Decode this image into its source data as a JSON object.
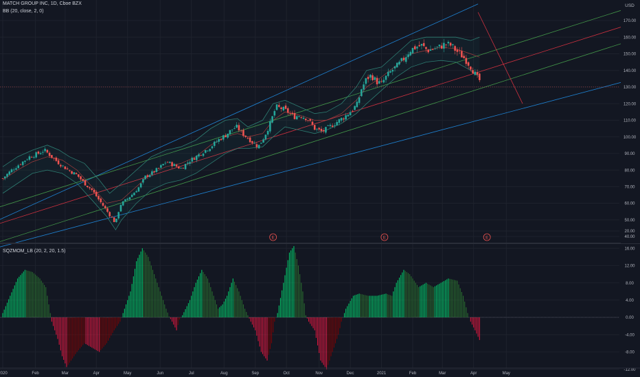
{
  "header": {
    "symbol_line": "MATCH GROUP INC, 1D, Cboe BZX",
    "bb_label": "BB (20, close, 2, 0)",
    "osc_label": "SQZMOM_LB (20, 2, 20, 1.5)"
  },
  "price_axis": {
    "currency": "USD",
    "ticks": [
      "170.00",
      "160.00",
      "150.00",
      "140.00",
      "130.00",
      "120.00",
      "110.00",
      "100.00",
      "90.00",
      "80.00",
      "70.00",
      "60.00",
      "50.00",
      "40.00"
    ],
    "last_price": 130
  },
  "osc_axis": {
    "ticks": [
      "20.00",
      "16.00",
      "12.00",
      "8.00",
      "4.00",
      "0.00",
      "-4.00",
      "-8.00",
      "-12.00"
    ]
  },
  "time_axis": [
    "2020",
    "Feb",
    "Mar",
    "Apr",
    "May",
    "Jun",
    "Jul",
    "Aug",
    "Sep",
    "Oct",
    "Nov",
    "Dec",
    "2021",
    "Feb",
    "Mar",
    "Apr",
    "May"
  ],
  "event_markers": [
    "E",
    "E",
    "E"
  ],
  "colors": {
    "background": "#131722",
    "up": "#26a69a",
    "down": "#ef5350",
    "grid": "#1e222d",
    "bb_band": "#2e7d72",
    "bb_fill": "rgba(38,166,154,0.06)",
    "bb_mid": "#a23c3c",
    "chan_blue": "#2196f3",
    "chan_green": "#4caf50",
    "chan_red": "#f23645",
    "hist_green_strong": "#00e676",
    "hist_green_weak": "#2e7d32",
    "hist_red_strong": "#ff1744",
    "hist_red_weak": "#8b0000",
    "zero_gray": "#787b86",
    "text": "#b2b5be",
    "last_price_bg": "#ef5350"
  },
  "chart_data": [
    {
      "type": "candlestick",
      "title": "MATCH GROUP INC, 1D, Cboe BZX",
      "ylabel": "USD",
      "ylim": [
        40,
        175
      ],
      "x_ticks": [
        "2020",
        "Feb",
        "Mar",
        "Apr",
        "May",
        "Jun",
        "Jul",
        "Aug",
        "Sep",
        "Oct",
        "Nov",
        "Dec",
        "2021",
        "Feb",
        "Mar",
        "Apr",
        "May"
      ],
      "close_path": [
        [
          0,
          75
        ],
        [
          6,
          80
        ],
        [
          12,
          84
        ],
        [
          18,
          88
        ],
        [
          24,
          90
        ],
        [
          28,
          92
        ],
        [
          33,
          88
        ],
        [
          38,
          84
        ],
        [
          44,
          80
        ],
        [
          50,
          77
        ],
        [
          55,
          72
        ],
        [
          60,
          68
        ],
        [
          64,
          63
        ],
        [
          68,
          58
        ],
        [
          72,
          53
        ],
        [
          76,
          48
        ],
        [
          79,
          59
        ],
        [
          83,
          62
        ],
        [
          88,
          66
        ],
        [
          92,
          70
        ],
        [
          96,
          76
        ],
        [
          100,
          78
        ],
        [
          105,
          81
        ],
        [
          110,
          85
        ],
        [
          115,
          83
        ],
        [
          120,
          81
        ],
        [
          125,
          85
        ],
        [
          130,
          88
        ],
        [
          135,
          91
        ],
        [
          140,
          94
        ],
        [
          145,
          98
        ],
        [
          150,
          101
        ],
        [
          155,
          105
        ],
        [
          158,
          106
        ],
        [
          160,
          103
        ],
        [
          164,
          100
        ],
        [
          168,
          97
        ],
        [
          172,
          94
        ],
        [
          176,
          100
        ],
        [
          180,
          108
        ],
        [
          184,
          118
        ],
        [
          188,
          117
        ],
        [
          192,
          115
        ],
        [
          196,
          112
        ],
        [
          200,
          113
        ],
        [
          205,
          111
        ],
        [
          210,
          105
        ],
        [
          215,
          103
        ],
        [
          220,
          106
        ],
        [
          225,
          109
        ],
        [
          230,
          112
        ],
        [
          235,
          116
        ],
        [
          239,
          120
        ],
        [
          241,
          128
        ],
        [
          245,
          135
        ],
        [
          248,
          137
        ],
        [
          252,
          133
        ],
        [
          255,
          132
        ],
        [
          258,
          136
        ],
        [
          262,
          140
        ],
        [
          266,
          143
        ],
        [
          270,
          147
        ],
        [
          274,
          152
        ],
        [
          278,
          154
        ],
        [
          282,
          155
        ],
        [
          286,
          152
        ],
        [
          290,
          153
        ],
        [
          294,
          154
        ],
        [
          298,
          156
        ],
        [
          302,
          155
        ],
        [
          305,
          152
        ],
        [
          309,
          149
        ],
        [
          312,
          146
        ],
        [
          316,
          141
        ],
        [
          319,
          136
        ],
        [
          321,
          134
        ]
      ],
      "bollinger": {
        "upper": [
          [
            0,
            82
          ],
          [
            10,
            88
          ],
          [
            20,
            92
          ],
          [
            30,
            95
          ],
          [
            38,
            92
          ],
          [
            45,
            88
          ],
          [
            55,
            84
          ],
          [
            65,
            74
          ],
          [
            72,
            66
          ],
          [
            80,
            72
          ],
          [
            90,
            80
          ],
          [
            100,
            88
          ],
          [
            110,
            92
          ],
          [
            120,
            94
          ],
          [
            130,
            98
          ],
          [
            140,
            105
          ],
          [
            150,
            110
          ],
          [
            158,
            111
          ],
          [
            165,
            106
          ],
          [
            175,
            110
          ],
          [
            182,
            120
          ],
          [
            190,
            122
          ],
          [
            200,
            118
          ],
          [
            210,
            114
          ],
          [
            218,
            115
          ],
          [
            228,
            120
          ],
          [
            238,
            130
          ],
          [
            245,
            140
          ],
          [
            255,
            142
          ],
          [
            265,
            150
          ],
          [
            275,
            158
          ],
          [
            285,
            160
          ],
          [
            295,
            160
          ],
          [
            305,
            160
          ],
          [
            315,
            158
          ],
          [
            321,
            160
          ]
        ],
        "middle": [
          [
            0,
            74
          ],
          [
            10,
            80
          ],
          [
            20,
            85
          ],
          [
            30,
            88
          ],
          [
            40,
            86
          ],
          [
            50,
            80
          ],
          [
            60,
            70
          ],
          [
            70,
            60
          ],
          [
            80,
            62
          ],
          [
            90,
            70
          ],
          [
            100,
            78
          ],
          [
            110,
            82
          ],
          [
            120,
            84
          ],
          [
            130,
            88
          ],
          [
            140,
            95
          ],
          [
            150,
            100
          ],
          [
            158,
            102
          ],
          [
            165,
            100
          ],
          [
            175,
            102
          ],
          [
            182,
            110
          ],
          [
            190,
            115
          ],
          [
            200,
            113
          ],
          [
            210,
            110
          ],
          [
            218,
            110
          ],
          [
            228,
            114
          ],
          [
            238,
            122
          ],
          [
            245,
            130
          ],
          [
            255,
            136
          ],
          [
            265,
            143
          ],
          [
            275,
            150
          ],
          [
            285,
            152
          ],
          [
            295,
            154
          ],
          [
            305,
            153
          ],
          [
            315,
            150
          ],
          [
            321,
            148
          ]
        ],
        "lower": [
          [
            0,
            66
          ],
          [
            10,
            72
          ],
          [
            20,
            78
          ],
          [
            30,
            80
          ],
          [
            40,
            78
          ],
          [
            50,
            72
          ],
          [
            60,
            62
          ],
          [
            70,
            52
          ],
          [
            76,
            44
          ],
          [
            80,
            50
          ],
          [
            90,
            60
          ],
          [
            100,
            68
          ],
          [
            110,
            72
          ],
          [
            120,
            74
          ],
          [
            130,
            78
          ],
          [
            140,
            84
          ],
          [
            150,
            90
          ],
          [
            158,
            93
          ],
          [
            165,
            93
          ],
          [
            175,
            94
          ],
          [
            182,
            100
          ],
          [
            190,
            106
          ],
          [
            200,
            104
          ],
          [
            210,
            102
          ],
          [
            218,
            104
          ],
          [
            228,
            108
          ],
          [
            238,
            114
          ],
          [
            245,
            120
          ],
          [
            255,
            128
          ],
          [
            265,
            136
          ],
          [
            275,
            142
          ],
          [
            285,
            145
          ],
          [
            295,
            146
          ],
          [
            305,
            145
          ],
          [
            315,
            140
          ],
          [
            321,
            136
          ]
        ]
      },
      "channel_lines": [
        {
          "name": "",
          "color": "blue",
          "from": [
            -5,
            49
          ],
          "to": [
            320,
            180
          ]
        },
        {
          "name": "",
          "color": "green",
          "from": [
            -5,
            57
          ],
          "to": [
            430,
            180
          ]
        },
        {
          "name": "",
          "color": "red",
          "from": [
            -5,
            47
          ],
          "to": [
            430,
            170
          ]
        },
        {
          "name": "",
          "color": "green",
          "from": [
            -5,
            36
          ],
          "to": [
            430,
            160
          ]
        },
        {
          "name": "",
          "color": "blue",
          "from": [
            -5,
            33
          ],
          "to": [
            430,
            136
          ]
        },
        {
          "name": "",
          "color": "red",
          "from": [
            320,
            175
          ],
          "to": [
            350,
            120
          ]
        }
      ]
    },
    {
      "type": "bar",
      "title": "SQZMOM_LB (20, 2, 20, 1.5)",
      "ylim": [
        -14,
        20
      ],
      "histogram": [
        [
          0,
          1
        ],
        [
          5,
          5
        ],
        [
          10,
          9
        ],
        [
          15,
          11
        ],
        [
          20,
          10.5
        ],
        [
          25,
          9
        ],
        [
          29,
          7
        ],
        [
          31,
          3
        ],
        [
          33,
          -1
        ],
        [
          37,
          -5
        ],
        [
          40,
          -9
        ],
        [
          43,
          -11.5
        ],
        [
          46,
          -10
        ],
        [
          50,
          -8
        ],
        [
          55,
          -6
        ],
        [
          60,
          -7
        ],
        [
          65,
          -8
        ],
        [
          70,
          -6
        ],
        [
          75,
          -3
        ],
        [
          79,
          -1
        ],
        [
          81,
          1
        ],
        [
          86,
          6
        ],
        [
          90,
          13
        ],
        [
          94,
          16
        ],
        [
          98,
          14
        ],
        [
          102,
          10
        ],
        [
          106,
          6
        ],
        [
          110,
          2
        ],
        [
          112,
          0.2
        ],
        [
          114,
          -1
        ],
        [
          117,
          -3
        ],
        [
          119,
          -0.5
        ],
        [
          121,
          0.5
        ],
        [
          126,
          4
        ],
        [
          130,
          8
        ],
        [
          134,
          11
        ],
        [
          138,
          9
        ],
        [
          142,
          5
        ],
        [
          145,
          2
        ],
        [
          148,
          3
        ],
        [
          151,
          5
        ],
        [
          155,
          9
        ],
        [
          159,
          6
        ],
        [
          163,
          2
        ],
        [
          165,
          0.5
        ],
        [
          167,
          -1
        ],
        [
          170,
          -3
        ],
        [
          174,
          -8
        ],
        [
          178,
          -10
        ],
        [
          181,
          -6
        ],
        [
          183,
          -1
        ],
        [
          185,
          1
        ],
        [
          189,
          8
        ],
        [
          193,
          15
        ],
        [
          196,
          16.5
        ],
        [
          199,
          12
        ],
        [
          202,
          6
        ],
        [
          204,
          0.5
        ],
        [
          206,
          -1
        ],
        [
          210,
          -3
        ],
        [
          214,
          -10
        ],
        [
          218,
          -12
        ],
        [
          222,
          -8
        ],
        [
          226,
          -4
        ],
        [
          228,
          -1
        ],
        [
          231,
          2
        ],
        [
          236,
          5
        ],
        [
          240,
          5.5
        ],
        [
          246,
          5
        ],
        [
          252,
          5
        ],
        [
          258,
          5.5
        ],
        [
          262,
          5
        ],
        [
          265,
          8
        ],
        [
          270,
          11
        ],
        [
          274,
          10
        ],
        [
          280,
          7
        ],
        [
          285,
          8
        ],
        [
          290,
          7
        ],
        [
          295,
          8
        ],
        [
          300,
          9
        ],
        [
          306,
          8.5
        ],
        [
          310,
          5
        ],
        [
          313,
          1
        ],
        [
          315,
          -1
        ],
        [
          318,
          -3
        ],
        [
          322,
          -6
        ],
        [
          325,
          -9
        ]
      ]
    }
  ]
}
